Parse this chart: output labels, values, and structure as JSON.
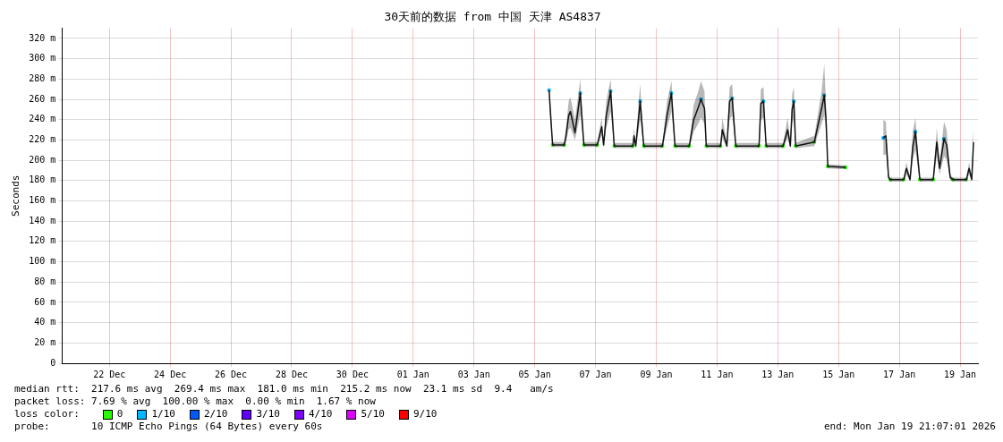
{
  "chart_data": {
    "type": "line",
    "title": "30天前的数据 from 中国 天津 AS4837",
    "ylabel": "Seconds",
    "legend_title": "loss color:",
    "legend": "bottom",
    "grid": true,
    "xlim": [
      "2025-12-20T22:35",
      "2026-01-20T02:06"
    ],
    "xticks": [
      {
        "value": "2025-12-22T12:00",
        "label": "22 Dec"
      },
      {
        "value": "2025-12-24T12:00",
        "label": "24 Dec"
      },
      {
        "value": "2025-12-26T12:00",
        "label": "26 Dec"
      },
      {
        "value": "2025-12-28T12:00",
        "label": "28 Dec"
      },
      {
        "value": "2025-12-30T12:00",
        "label": "30 Dec"
      },
      {
        "value": "2026-01-01T12:00",
        "label": "01 Jan"
      },
      {
        "value": "2026-01-03T12:00",
        "label": "03 Jan"
      },
      {
        "value": "2026-01-05T12:00",
        "label": "05 Jan"
      },
      {
        "value": "2026-01-07T12:00",
        "label": "07 Jan"
      },
      {
        "value": "2026-01-09T12:00",
        "label": "09 Jan"
      },
      {
        "value": "2026-01-11T12:00",
        "label": "11 Jan"
      },
      {
        "value": "2026-01-13T12:00",
        "label": "13 Jan"
      },
      {
        "value": "2026-01-15T12:00",
        "label": "15 Jan"
      },
      {
        "value": "2026-01-17T12:00",
        "label": "17 Jan"
      },
      {
        "value": "2026-01-19T12:00",
        "label": "19 Jan"
      }
    ],
    "ylim": [
      0,
      330
    ],
    "yticks": [
      0,
      {
        "value": 20,
        "label": "20 m"
      },
      {
        "value": 40,
        "label": "40 m"
      },
      {
        "value": 60,
        "label": "60 m"
      },
      {
        "value": 80,
        "label": "80 m"
      },
      {
        "value": 100,
        "label": "100 m"
      },
      {
        "value": 120,
        "label": "120 m"
      },
      {
        "value": 140,
        "label": "140 m"
      },
      {
        "value": 160,
        "label": "160 m"
      },
      {
        "value": 180,
        "label": "180 m"
      },
      {
        "value": 200,
        "label": "200 m"
      },
      {
        "value": 220,
        "label": "220 m"
      },
      {
        "value": 240,
        "label": "240 m"
      },
      {
        "value": 260,
        "label": "260 m"
      },
      {
        "value": 280,
        "label": "280 m"
      },
      {
        "value": 300,
        "label": "300 m"
      },
      {
        "value": 320,
        "label": "320 m"
      }
    ],
    "series": [
      {
        "color": "#1a1a1a",
        "marker": "none",
        "x": [
          "2026-01-05T23:18",
          "2026-01-06T02:06",
          "2026-01-06T11:18",
          "2026-01-06T12:42",
          "2026-01-06T14:48",
          "2026-01-06T16:12",
          "2026-01-06T19:48",
          "2026-01-07T00:00",
          "2026-01-07T02:48",
          "2026-01-07T13:24",
          "2026-01-07T16:54",
          "2026-01-07T18:24",
          "2026-01-07T20:30",
          "2026-01-08T00:00",
          "2026-01-08T02:48",
          "2026-01-08T17:36",
          "2026-01-08T18:24",
          "2026-01-08T19:48",
          "2026-01-08T21:54",
          "2026-01-08T23:18",
          "2026-01-09T02:06",
          "2026-01-09T16:54",
          "2026-01-09T20:30",
          "2026-01-10T00:00",
          "2026-01-10T02:48",
          "2026-01-10T14:06",
          "2026-01-10T17:36",
          "2026-01-10T21:12",
          "2026-01-10T23:18",
          "2026-01-11T02:06",
          "2026-01-11T03:30",
          "2026-01-11T14:48",
          "2026-01-11T16:12",
          "2026-01-11T19:48",
          "2026-01-11T21:54",
          "2026-01-12T00:00",
          "2026-01-12T02:48",
          "2026-01-12T21:12",
          "2026-01-12T22:36",
          "2026-01-13T00:42",
          "2026-01-13T02:48",
          "2026-01-13T16:12",
          "2026-01-13T19:48",
          "2026-01-13T21:54",
          "2026-01-13T23:18",
          "2026-01-14T00:42",
          "2026-01-14T02:06",
          "2026-01-14T16:54",
          "2026-01-14T22:36",
          "2026-01-15T00:42",
          "2026-01-15T02:06",
          "2026-01-15T03:30",
          "2026-01-15T17:36",
          "2026-01-16T06:00",
          "2026-01-16T23:18",
          "2026-01-17T01:24",
          "2026-01-17T03:30",
          "2026-01-17T04:54",
          "2026-01-17T15:30",
          "2026-01-17T17:36",
          "2026-01-17T20:30",
          "2026-01-17T22:36",
          "2026-01-18T00:42",
          "2026-01-18T04:12",
          "2026-01-18T14:48",
          "2026-01-18T17:36",
          "2026-01-18T19:48",
          "2026-01-18T23:18",
          "2026-01-19T01:24",
          "2026-01-19T04:12",
          "2026-01-19T06:24",
          "2026-01-19T17:00",
          "2026-01-19T19:06",
          "2026-01-19T21:12",
          "2026-01-19T22:36"
        ],
        "values": [
          269,
          215,
          215,
          224,
          244,
          248,
          227,
          266,
          215,
          215,
          233,
          215,
          244,
          268,
          214,
          214,
          224,
          214,
          240,
          258,
          214,
          214,
          244,
          266,
          214,
          214,
          240,
          252,
          260,
          251,
          214,
          214,
          230,
          214,
          258,
          261,
          214,
          214,
          256,
          258,
          214,
          214,
          230,
          214,
          250,
          258,
          214,
          218,
          251,
          264,
          240,
          194,
          193,
          null,
          222,
          224,
          183,
          181,
          181,
          192,
          181,
          213,
          228,
          181,
          181,
          218,
          192,
          221,
          215,
          183,
          181,
          181,
          192,
          181,
          218
        ],
        "lower": [
          255,
          213,
          213,
          218,
          230,
          232,
          220,
          245,
          213,
          213,
          225,
          213,
          232,
          248,
          212,
          212,
          218,
          212,
          228,
          240,
          212,
          212,
          232,
          248,
          212,
          212,
          228,
          236,
          242,
          236,
          212,
          212,
          222,
          212,
          240,
          244,
          212,
          212,
          240,
          242,
          212,
          212,
          222,
          212,
          236,
          242,
          212,
          214,
          236,
          244,
          228,
          192,
          191,
          null,
          205,
          206,
          180,
          179,
          179,
          186,
          179,
          200,
          210,
          179,
          179,
          204,
          186,
          204,
          200,
          180,
          179,
          179,
          186,
          179,
          204
        ],
        "upper": [
          278,
          218,
          218,
          232,
          258,
          262,
          240,
          280,
          218,
          218,
          242,
          218,
          258,
          280,
          217,
          217,
          232,
          217,
          255,
          275,
          217,
          217,
          258,
          278,
          217,
          217,
          255,
          268,
          278,
          268,
          217,
          217,
          242,
          217,
          272,
          275,
          217,
          217,
          270,
          272,
          217,
          217,
          242,
          217,
          265,
          272,
          217,
          224,
          268,
          295,
          255,
          196,
          195,
          null,
          240,
          238,
          186,
          183,
          183,
          198,
          183,
          228,
          242,
          183,
          183,
          232,
          198,
          238,
          230,
          186,
          183,
          183,
          198,
          183,
          234
        ]
      },
      {
        "name": "0",
        "type": "scatter",
        "color": "#26ff00",
        "marker": "square",
        "x": [
          "2026-01-06T02:06",
          "2026-01-06T11:18",
          "2026-01-07T02:48",
          "2026-01-07T13:24",
          "2026-01-08T02:48",
          "2026-01-08T17:36",
          "2026-01-09T02:06",
          "2026-01-09T16:54",
          "2026-01-10T02:48",
          "2026-01-10T14:06",
          "2026-01-11T03:30",
          "2026-01-11T14:48",
          "2026-01-12T02:48",
          "2026-01-12T21:12",
          "2026-01-13T02:48",
          "2026-01-13T16:12",
          "2026-01-14T02:06",
          "2026-01-14T16:54",
          "2026-01-15T03:30",
          "2026-01-15T17:36",
          "2026-01-17T04:54",
          "2026-01-17T15:30",
          "2026-01-18T04:12",
          "2026-01-18T14:48",
          "2026-01-19T06:24",
          "2026-01-19T17:00"
        ],
        "values": [
          215,
          215,
          215,
          215,
          214,
          214,
          214,
          214,
          214,
          214,
          214,
          214,
          214,
          214,
          214,
          214,
          214,
          218,
          194,
          193,
          181,
          181,
          181,
          181,
          181,
          181
        ]
      },
      {
        "name": "1/10",
        "type": "scatter",
        "color": "#00b8ff",
        "marker": "square",
        "x": [
          "2026-01-05T23:18",
          "2026-01-07T00:00",
          "2026-01-08T00:00",
          "2026-01-08T23:18",
          "2026-01-10T00:00",
          "2026-01-10T23:18",
          "2026-01-12T00:00",
          "2026-01-13T00:42",
          "2026-01-14T00:42",
          "2026-01-15T00:42",
          "2026-01-16T23:18",
          "2026-01-18T00:42",
          "2026-01-18T23:18"
        ],
        "values": [
          269,
          266,
          268,
          258,
          266,
          260,
          261,
          258,
          258,
          264,
          222,
          228,
          221
        ]
      },
      {
        "name": "2/10",
        "type": "scatter",
        "color": "#0059ff",
        "marker": "square"
      },
      {
        "name": "3/10",
        "type": "scatter",
        "color": "#5e00ff",
        "marker": "square"
      },
      {
        "name": "4/10",
        "type": "scatter",
        "color": "#7e00ff",
        "marker": "square"
      },
      {
        "name": "5/10",
        "type": "scatter",
        "color": "#dd00ff",
        "marker": "square"
      },
      {
        "name": "9/10",
        "type": "scatter",
        "color": "#ff0000",
        "marker": "square"
      }
    ],
    "annotations": [
      "median rtt:  217.6 ms avg  269.4 ms max  181.0 ms min  215.2 ms now  23.1 ms sd  9.4   am/s",
      "packet loss: 7.69 % avg  100.00 % max  0.00 % min  1.67 % now",
      "probe:       10 ICMP Echo Pings (64 Bytes) every 60s",
      "end: Mon Jan 19 21:07:01 2026"
    ]
  }
}
